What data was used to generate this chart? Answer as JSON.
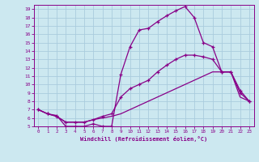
{
  "bg_color": "#cce8f0",
  "grid_color": "#aaccdd",
  "line_color": "#880088",
  "xlim": [
    -0.5,
    23.5
  ],
  "ylim": [
    5,
    19.5
  ],
  "yticks": [
    5,
    6,
    7,
    8,
    9,
    10,
    11,
    12,
    13,
    14,
    15,
    16,
    17,
    18,
    19
  ],
  "xticks": [
    0,
    1,
    2,
    3,
    4,
    5,
    6,
    7,
    8,
    9,
    10,
    11,
    12,
    13,
    14,
    15,
    16,
    17,
    18,
    19,
    20,
    21,
    22,
    23
  ],
  "xlabel": "Windchill (Refroidissement éolien,°C)",
  "curve1_x": [
    0,
    1,
    2,
    3,
    4,
    5,
    6,
    7,
    8,
    9,
    10,
    11,
    12,
    13,
    14,
    15,
    16,
    17,
    18,
    19,
    20,
    21,
    22,
    23
  ],
  "curve1_y": [
    7.0,
    6.5,
    6.3,
    5.0,
    5.0,
    5.0,
    5.3,
    5.0,
    5.0,
    11.2,
    14.5,
    16.5,
    16.7,
    17.5,
    18.2,
    18.8,
    19.3,
    18.0,
    15.0,
    14.5,
    11.5,
    11.5,
    9.3,
    8.0
  ],
  "curve2_x": [
    0,
    1,
    2,
    3,
    4,
    5,
    6,
    7,
    8,
    9,
    10,
    11,
    12,
    13,
    14,
    15,
    16,
    17,
    18,
    19,
    20,
    21,
    22,
    23
  ],
  "curve2_y": [
    7.0,
    6.5,
    6.2,
    5.5,
    5.5,
    5.5,
    5.8,
    6.2,
    6.5,
    8.5,
    9.5,
    10.0,
    10.5,
    11.5,
    12.3,
    13.0,
    13.5,
    13.5,
    13.3,
    13.0,
    11.5,
    11.5,
    9.0,
    8.0
  ],
  "curve3_x": [
    0,
    1,
    2,
    3,
    4,
    5,
    6,
    7,
    8,
    9,
    10,
    11,
    12,
    13,
    14,
    15,
    16,
    17,
    18,
    19,
    20,
    21,
    22,
    23
  ],
  "curve3_y": [
    7.0,
    6.5,
    6.2,
    5.5,
    5.5,
    5.5,
    5.8,
    6.0,
    6.2,
    6.5,
    7.0,
    7.5,
    8.0,
    8.5,
    9.0,
    9.5,
    10.0,
    10.5,
    11.0,
    11.5,
    11.5,
    11.5,
    8.5,
    8.0
  ]
}
